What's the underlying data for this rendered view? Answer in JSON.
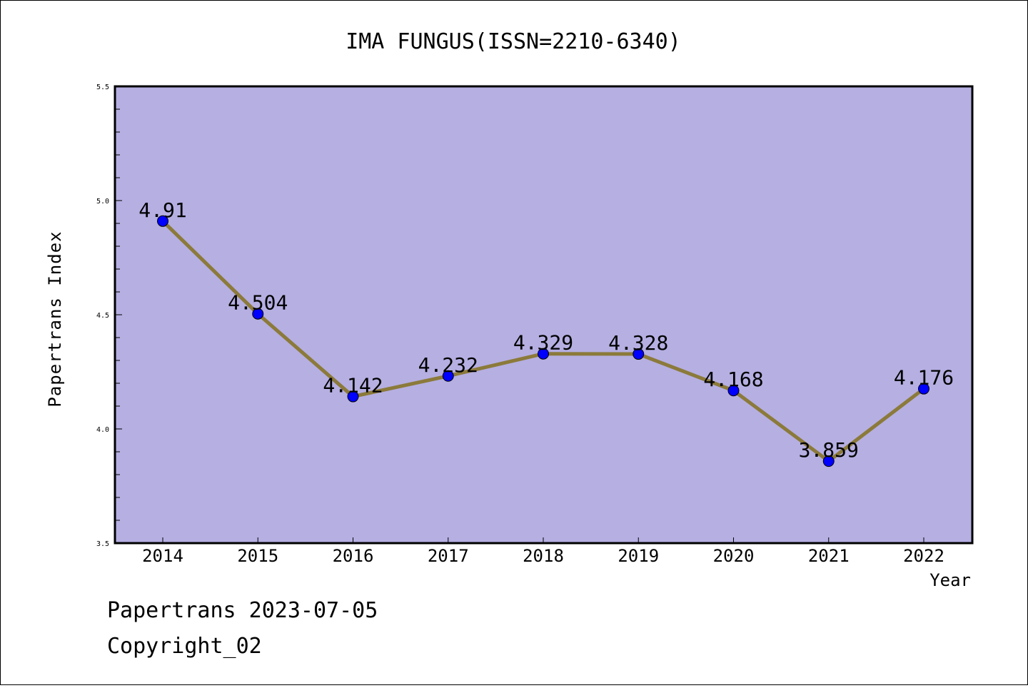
{
  "chart_data": {
    "type": "line",
    "title": "IMA FUNGUS(ISSN=2210-6340)",
    "xlabel": "Year",
    "ylabel": "Papertrans Index",
    "categories": [
      "2014",
      "2015",
      "2016",
      "2017",
      "2018",
      "2019",
      "2020",
      "2021",
      "2022"
    ],
    "series": [
      {
        "values": [
          4.91,
          4.504,
          4.142,
          4.232,
          4.329,
          4.328,
          4.168,
          3.859,
          4.176
        ]
      }
    ],
    "data_labels": [
      "4.91",
      "4.504",
      "4.142",
      "4.232",
      "4.329",
      "4.328",
      "4.168",
      "3.859",
      "4.176"
    ],
    "ylim": [
      3.5,
      5.5
    ],
    "yticks": [
      "3.5",
      "4.0",
      "4.5",
      "5.0",
      "5.5"
    ],
    "grid": false,
    "colors": {
      "plot_bg": "#b5afe2",
      "line": "#8b7a3a",
      "marker": "#0000ff"
    }
  },
  "footer": {
    "line1": "Papertrans 2023-07-05",
    "line2": "Copyright_02"
  }
}
